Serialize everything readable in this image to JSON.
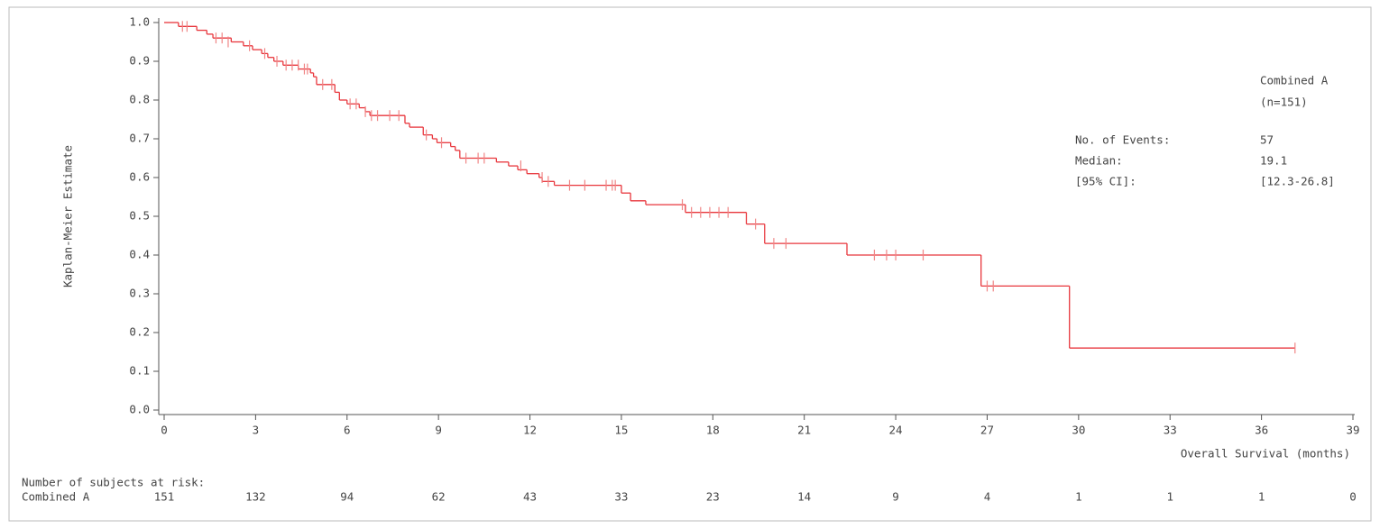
{
  "chart_data": {
    "type": "km",
    "y_label": "Kaplan-Meier Estimate",
    "x_label": "Overall Survival (months)",
    "xlim": [
      0,
      39
    ],
    "ylim": [
      0,
      1
    ],
    "xticks": [
      0,
      3,
      6,
      9,
      12,
      15,
      18,
      21,
      24,
      27,
      30,
      33,
      36,
      39
    ],
    "yticks": [
      {
        "value": 0,
        "label": "0.0"
      },
      0.1,
      0.2,
      0.3,
      0.4,
      0.5,
      0.6,
      0.7,
      0.8,
      0.9,
      {
        "value": 1,
        "label": "1.0"
      }
    ],
    "series": [
      {
        "name": "Combined A",
        "n_label": "(n=151)",
        "color": "#e8363c",
        "x": [
          0,
          0.47,
          1.07,
          1.4,
          1.6,
          2.2,
          2.6,
          2.9,
          3.2,
          3.4,
          3.6,
          3.9,
          4.4,
          4.8,
          4.9,
          5.0,
          5.6,
          5.75,
          6.0,
          6.4,
          6.6,
          6.75,
          7.9,
          8.05,
          8.5,
          8.8,
          8.95,
          9.4,
          9.55,
          9.7,
          10.9,
          11.3,
          11.6,
          11.9,
          12.3,
          12.4,
          12.8,
          15.0,
          15.3,
          15.8,
          17.1,
          19.1,
          19.7,
          22.4,
          26.8,
          29.7
        ],
        "values": [
          1.0,
          0.99,
          0.98,
          0.97,
          0.96,
          0.95,
          0.94,
          0.93,
          0.92,
          0.91,
          0.9,
          0.89,
          0.88,
          0.87,
          0.86,
          0.84,
          0.82,
          0.8,
          0.79,
          0.78,
          0.77,
          0.76,
          0.74,
          0.73,
          0.71,
          0.7,
          0.69,
          0.68,
          0.67,
          0.65,
          0.64,
          0.63,
          0.62,
          0.61,
          0.6,
          0.59,
          0.58,
          0.56,
          0.54,
          0.53,
          0.51,
          0.48,
          0.43,
          0.4,
          0.32,
          0.16
        ],
        "censor_color": "#f08585",
        "censor_x": [
          0.6,
          0.75,
          1.7,
          1.9,
          2.1,
          2.8,
          3.3,
          3.7,
          4.0,
          4.2,
          4.4,
          4.6,
          4.7,
          5.2,
          5.5,
          6.1,
          6.3,
          6.6,
          6.8,
          7.0,
          7.4,
          7.7,
          8.6,
          9.1,
          9.9,
          10.3,
          10.5,
          11.7,
          12.4,
          12.6,
          13.3,
          13.8,
          14.5,
          14.7,
          14.8,
          17.0,
          17.3,
          17.6,
          17.9,
          18.2,
          18.5,
          19.4,
          20.0,
          20.4,
          23.3,
          23.7,
          24.0,
          24.9,
          27.0,
          27.2,
          37.1
        ],
        "censor_values": [
          0.99,
          0.99,
          0.96,
          0.96,
          0.95,
          0.94,
          0.92,
          0.9,
          0.89,
          0.89,
          0.89,
          0.88,
          0.88,
          0.84,
          0.84,
          0.79,
          0.79,
          0.77,
          0.76,
          0.76,
          0.76,
          0.76,
          0.71,
          0.69,
          0.65,
          0.65,
          0.65,
          0.63,
          0.6,
          0.59,
          0.58,
          0.58,
          0.58,
          0.58,
          0.58,
          0.53,
          0.51,
          0.51,
          0.51,
          0.51,
          0.51,
          0.48,
          0.43,
          0.43,
          0.4,
          0.4,
          0.4,
          0.4,
          0.32,
          0.32,
          0.16
        ]
      }
    ],
    "stats": [
      {
        "label": "No. of Events:",
        "value": "57"
      },
      {
        "label": "Median:",
        "value": "19.1"
      },
      {
        "label": "[95% CI]:",
        "value": "[12.3-26.8]"
      }
    ],
    "risk_title": "Number of subjects at risk:",
    "risk_counts": [
      "151",
      "132",
      "94",
      "62",
      "43",
      "33",
      "23",
      "14",
      "9",
      "4",
      "1",
      "1",
      "1",
      "0"
    ]
  }
}
